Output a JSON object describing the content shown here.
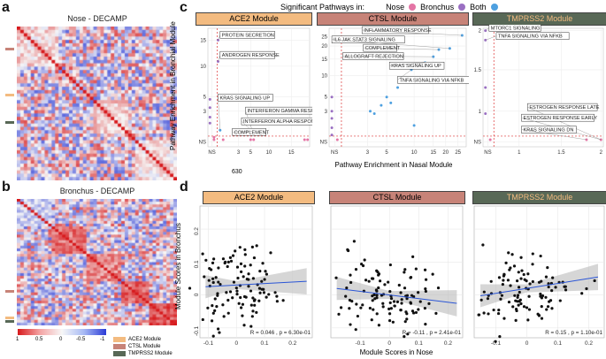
{
  "figure": {
    "panels": {
      "a": "a",
      "b": "b",
      "c": "c",
      "d": "d"
    },
    "heatmap_a_title": "Nose - DECAMP",
    "heatmap_b_title": "Bronchus - DECAMP",
    "colorbar_ticks": [
      "1",
      "0.5",
      "0",
      "-0.5",
      "-1"
    ],
    "module_legend": [
      {
        "label": "ACE2 Module",
        "color": "#f3bb80"
      },
      {
        "label": "CTSL Module",
        "color": "#c78378"
      },
      {
        "label": "TMPRSS2 Module",
        "color": "#586856"
      }
    ],
    "sig_legend": {
      "title": "Significant Pathways in:",
      "items": [
        {
          "label": "Nose",
          "color": "#e475a5"
        },
        {
          "label": "Bronchus",
          "color": "#9a6fc2"
        },
        {
          "label": "Both",
          "color": "#4ea0e0"
        }
      ]
    },
    "modules": [
      {
        "name": "ACE2 Module",
        "color": "#f3bb80",
        "text": "#333"
      },
      {
        "name": "CTSL Module",
        "color": "#c78378",
        "text": "#333"
      },
      {
        "name": "TMPRSS2 Module",
        "color": "#586856",
        "text": "#f3bb80"
      }
    ],
    "c_ylabel": "Pathway Enrichment in Bronchial Module",
    "c_xlabel": "Pathway Enrichment in Nasal Module",
    "c_extra": "630",
    "d_ylabel": "Module Scores in Bronchus",
    "d_xlabel": "Module Scores in Nose"
  },
  "chart_data": [
    {
      "type": "scatter",
      "title": "ACE2 Module (pathway enrichment)",
      "xlabel": "Pathway Enrichment in Nasal Module",
      "ylabel": "Pathway Enrichment in Bronchial Module",
      "x_ticks": [
        "NS",
        "3",
        "5",
        "10",
        "15"
      ],
      "y_ticks": [
        "NS",
        "3",
        "5",
        "10",
        "15"
      ],
      "annotations": [
        "PROTEIN SECRETION",
        "ANDROGEN RESPONSE",
        "KRAS SIGNALING UP",
        "INTERFERON GAMMA RESPONSE",
        "INTERFERON ALPHA RESPONSE",
        "COMPLEMENT"
      ]
    },
    {
      "type": "scatter",
      "title": "CTSL Module (pathway enrichment)",
      "xlabel": "Pathway Enrichment in Nasal Module",
      "ylabel": "Pathway Enrichment in Bronchial Module",
      "x_ticks": [
        "NS",
        "3",
        "5",
        "10",
        "15",
        "20",
        "25"
      ],
      "y_ticks": [
        "NS",
        "3",
        "5",
        "10",
        "15",
        "20",
        "25"
      ],
      "annotations": [
        "INFLAMMATORY RESPONSE",
        "IL6 JAK STAT3 SIGNALING",
        "COMPLEMENT",
        "ALLOGRAFT REJECTION",
        "KRAS SIGNALING UP",
        "TNFA SIGNALING VIA NFKB"
      ]
    },
    {
      "type": "scatter",
      "title": "TMPRSS2 Module (pathway enrichment)",
      "xlabel": "Pathway Enrichment in Nasal Module",
      "ylabel": "Pathway Enrichment in Bronchial Module",
      "x_ticks": [
        "NS",
        "1",
        "1.5",
        "2"
      ],
      "y_ticks": [
        "NS",
        "1",
        "1.5",
        "2"
      ],
      "annotations": [
        "MTORC1 SIGNALING",
        "TNFA SIGNALING VIA NFKB",
        "ESTROGEN RESPONSE LATE",
        "ESTROGEN RESPONSE EARLY",
        "KRAS SIGNALING DN"
      ]
    },
    {
      "type": "scatter",
      "title": "ACE2 Module",
      "xlabel": "Module Scores in Nose",
      "ylabel": "Module Scores in Bronchus",
      "x_ticks": [
        "-0.1",
        "0",
        "0.1",
        "0.2"
      ],
      "y_ticks": [
        "-0.1",
        "0",
        "0.1",
        "0.2"
      ],
      "xlim": [
        -0.13,
        0.27
      ],
      "ylim": [
        -0.13,
        0.27
      ],
      "fit": {
        "intercept": 0.03,
        "slope": 0.046
      },
      "stat": "R = 0.046 , p = 6.30e-01"
    },
    {
      "type": "scatter",
      "title": "CTSL Module",
      "xlabel": "Module Scores in Nose",
      "ylabel": "Module Scores in Bronchus",
      "x_ticks": [
        "-0.1",
        "0",
        "0.1",
        "0.2"
      ],
      "y_ticks": [
        "-0.1",
        "0",
        "0.1",
        "0.2"
      ],
      "xlim": [
        -0.2,
        0.25
      ],
      "ylim": [
        -0.13,
        0.27
      ],
      "fit": {
        "intercept": 0.0,
        "slope": -0.11
      },
      "stat": "R = -0.11 , p = 2.41e-01"
    },
    {
      "type": "scatter",
      "title": "TMPRSS2 Module",
      "xlabel": "Module Scores in Nose",
      "ylabel": "Module Scores in Bronchus",
      "x_ticks": [
        "-0.1",
        "0",
        "0.1",
        "0.2"
      ],
      "y_ticks": [
        "-0.1",
        "0",
        "0.1",
        "0.2"
      ],
      "xlim": [
        -0.17,
        0.25
      ],
      "ylim": [
        -0.13,
        0.27
      ],
      "fit": {
        "intercept": 0.02,
        "slope": 0.15
      },
      "stat": "R = 0.15 , p = 1.10e-01"
    }
  ]
}
